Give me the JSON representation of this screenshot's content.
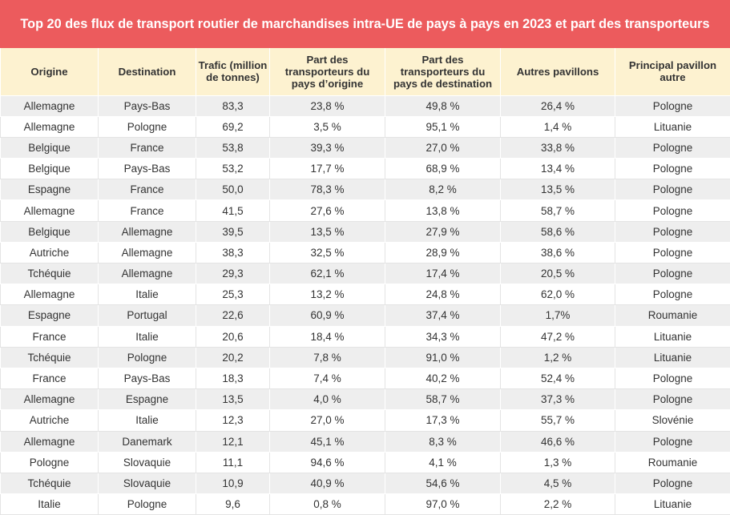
{
  "chart_data": {
    "type": "table",
    "title": "Top 20 des flux de transport routier de marchandises intra-UE de pays à pays en 2023 et part des transporteurs",
    "columns": [
      "Origine",
      "Destination",
      "Trafic (million de tonnes)",
      "Part des transporteurs du pays d’origine",
      "Part des transporteurs du pays de destination",
      "Autres pavillons",
      "Principal pavillon autre"
    ],
    "rows": [
      [
        "Allemagne",
        "Pays-Bas",
        "83,3",
        "23,8 %",
        "49,8 %",
        "26,4 %",
        "Pologne"
      ],
      [
        "Allemagne",
        "Pologne",
        "69,2",
        "3,5 %",
        "95,1 %",
        "1,4 %",
        "Lituanie"
      ],
      [
        "Belgique",
        "France",
        "53,8",
        "39,3 %",
        "27,0 %",
        "33,8 %",
        "Pologne"
      ],
      [
        "Belgique",
        "Pays-Bas",
        "53,2",
        "17,7 %",
        "68,9 %",
        "13,4 %",
        "Pologne"
      ],
      [
        "Espagne",
        "France",
        "50,0",
        "78,3 %",
        "8,2 %",
        "13,5 %",
        "Pologne"
      ],
      [
        "Allemagne",
        "France",
        "41,5",
        "27,6 %",
        "13,8 %",
        "58,7 %",
        "Pologne"
      ],
      [
        "Belgique",
        "Allemagne",
        "39,5",
        "13,5 %",
        "27,9 %",
        "58,6 %",
        "Pologne"
      ],
      [
        "Autriche",
        "Allemagne",
        "38,3",
        "32,5 %",
        "28,9 %",
        "38,6 %",
        "Pologne"
      ],
      [
        "Tchéquie",
        "Allemagne",
        "29,3",
        "62,1 %",
        "17,4 %",
        "20,5 %",
        "Pologne"
      ],
      [
        "Allemagne",
        "Italie",
        "25,3",
        "13,2 %",
        "24,8 %",
        "62,0 %",
        "Pologne"
      ],
      [
        "Espagne",
        "Portugal",
        "22,6",
        "60,9 %",
        "37,4 %",
        "1,7%",
        "Roumanie"
      ],
      [
        "France",
        "Italie",
        "20,6",
        "18,4 %",
        "34,3 %",
        "47,2 %",
        "Lituanie"
      ],
      [
        "Tchéquie",
        "Pologne",
        "20,2",
        "7,8 %",
        "91,0 %",
        "1,2 %",
        "Lituanie"
      ],
      [
        "France",
        "Pays-Bas",
        "18,3",
        "7,4 %",
        "40,2 %",
        "52,4 %",
        "Pologne"
      ],
      [
        "Allemagne",
        "Espagne",
        "13,5",
        "4,0 %",
        "58,7 %",
        "37,3 %",
        "Pologne"
      ],
      [
        "Autriche",
        "Italie",
        "12,3",
        "27,0 %",
        "17,3 %",
        "55,7 %",
        "Slovénie"
      ],
      [
        "Allemagne",
        "Danemark",
        "12,1",
        "45,1 %",
        "8,3 %",
        "46,6 %",
        "Pologne"
      ],
      [
        "Pologne",
        "Slovaquie",
        "11,1",
        "94,6 %",
        "4,1 %",
        "1,3 %",
        "Roumanie"
      ],
      [
        "Tchéquie",
        "Slovaquie",
        "10,9",
        "40,9 %",
        "54,6 %",
        "4,5 %",
        "Pologne"
      ],
      [
        "Italie",
        "Pologne",
        "9,6",
        "0,8 %",
        "97,0 %",
        "2,2 %",
        "Lituanie"
      ]
    ]
  },
  "colors": {
    "title_background": "#ec5b5d",
    "title_text": "#ffffff",
    "header_background": "#fdf2d0",
    "row_odd": "#eeeeee",
    "row_even": "#ffffff"
  }
}
